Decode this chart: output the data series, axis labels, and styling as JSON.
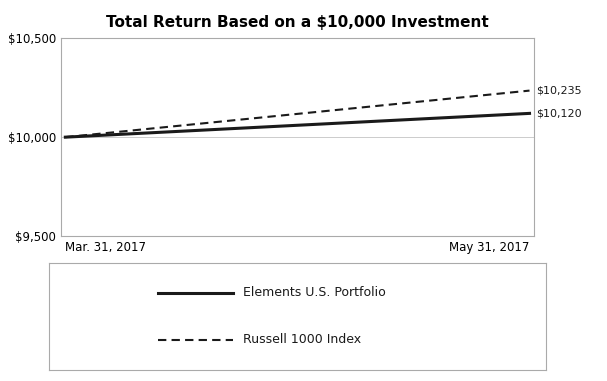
{
  "title": "Total Return Based on a $10,000 Investment",
  "x_labels": [
    "Mar. 31, 2017",
    "May 31, 2017"
  ],
  "x_positions": [
    0,
    1
  ],
  "portfolio_values": [
    10000,
    10120
  ],
  "index_values": [
    10000,
    10235
  ],
  "portfolio_label": "Elements U.S. Portfolio",
  "index_label": "Russell 1000 Index",
  "ylim": [
    9500,
    10500
  ],
  "yticks": [
    9500,
    10000,
    10500
  ],
  "end_label_portfolio": "$10,120",
  "end_label_index": "$10,235",
  "line_color": "#1a1a1a",
  "title_fontsize": 11,
  "tick_fontsize": 8.5,
  "legend_fontsize": 9,
  "annotation_fontsize": 8,
  "background_color": "#ffffff",
  "spine_color": "#aaaaaa",
  "grid_color": "#cccccc"
}
